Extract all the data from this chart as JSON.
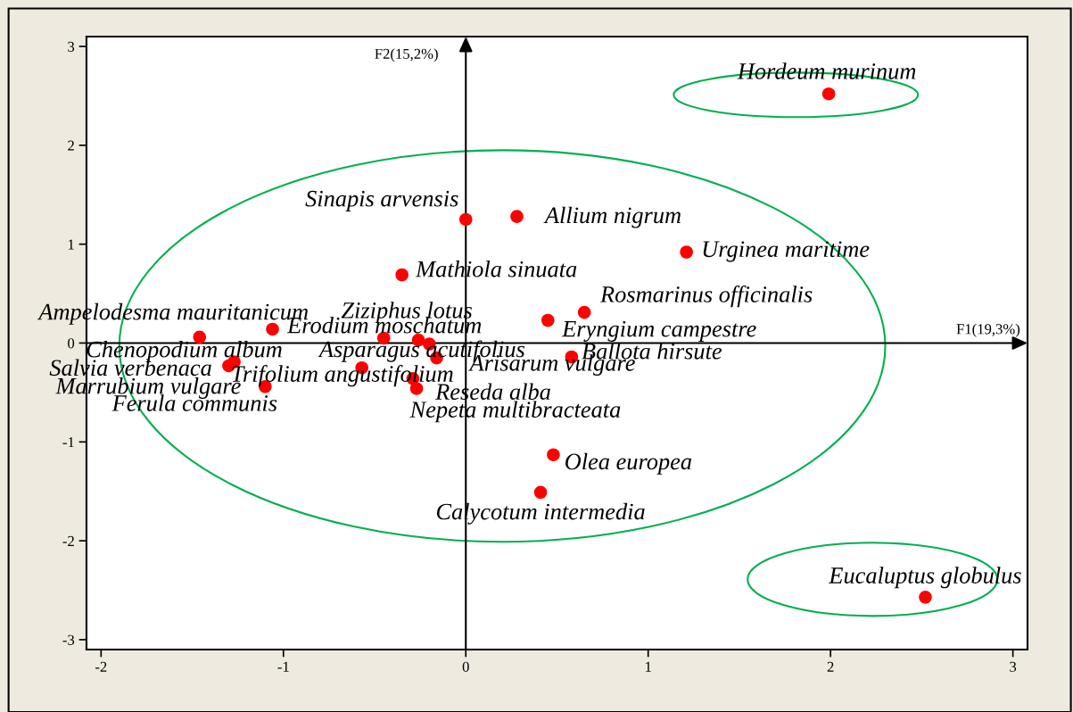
{
  "chart_data": {
    "type": "scatter",
    "xlabel": "F1(19,3%)",
    "ylabel": "F2(15,2%)",
    "xlim": [
      -2.08,
      3.08
    ],
    "ylim": [
      -3.1,
      3.1
    ],
    "xticks": [
      -2,
      -1,
      0,
      1,
      2,
      3
    ],
    "yticks": [
      -3,
      -2,
      -1,
      0,
      1,
      2,
      3
    ],
    "grid": false,
    "legend": false,
    "marker": "circle",
    "series": [
      {
        "color": "#ff0000",
        "x": [
          0.0,
          0.28,
          1.21,
          -0.35,
          0.65,
          0.45,
          0.58,
          -1.46,
          -1.06,
          -0.45,
          -0.26,
          -0.2,
          -0.16,
          -0.57,
          -0.29,
          -0.27,
          -1.27,
          -1.3,
          -1.1,
          0.48,
          0.41,
          1.99,
          2.52
        ],
        "values": [
          1.25,
          1.28,
          0.92,
          0.69,
          0.31,
          0.23,
          -0.14,
          0.06,
          0.14,
          0.05,
          0.03,
          -0.01,
          -0.15,
          -0.25,
          -0.36,
          -0.46,
          -0.19,
          -0.23,
          -0.44,
          -1.13,
          -1.51,
          2.52,
          -2.57
        ]
      }
    ],
    "annotations": [
      {
        "text": "Sinapis arvensis",
        "x": 0.0,
        "y": 1.25
      },
      {
        "text": "Allium nigrum",
        "x": 0.28,
        "y": 1.28
      },
      {
        "text": "Urginea maritime",
        "x": 1.21,
        "y": 0.92
      },
      {
        "text": "Mathiola sinuata",
        "x": -0.35,
        "y": 0.69
      },
      {
        "text": "Rosmarinus officinalis",
        "x": 0.65,
        "y": 0.31
      },
      {
        "text": "Eryngium campestre",
        "x": 0.45,
        "y": 0.23
      },
      {
        "text": "Ballota hirsute",
        "x": 0.58,
        "y": -0.14
      },
      {
        "text": "Ampelodesma mauritanicum",
        "x": -1.46,
        "y": 0.06
      },
      {
        "text": "Ziziphus lotus",
        "x": -0.26,
        "y": 0.03
      },
      {
        "text": "Erodium moschatum",
        "x": -0.45,
        "y": 0.05
      },
      {
        "text": "Asparagus acutifolius",
        "x": -0.2,
        "y": -0.01
      },
      {
        "text": "Chenopodium album",
        "x": -1.06,
        "y": 0.14
      },
      {
        "text": "Salvia verbenaca",
        "x": -1.27,
        "y": -0.19
      },
      {
        "text": "Arisarum vulgare",
        "x": -0.16,
        "y": -0.15
      },
      {
        "text": "Trifolium angustifolium",
        "x": -0.57,
        "y": -0.25
      },
      {
        "text": "Marrubium vulgare",
        "x": -1.3,
        "y": -0.23
      },
      {
        "text": "Reseda alba",
        "x": -0.27,
        "y": -0.46
      },
      {
        "text": "Ferula communis",
        "x": -1.1,
        "y": -0.44
      },
      {
        "text": "Nepeta multibracteata",
        "x": -0.29,
        "y": -0.36
      },
      {
        "text": "Olea europea",
        "x": 0.48,
        "y": -1.13
      },
      {
        "text": "Calycotum intermedia",
        "x": 0.41,
        "y": -1.51
      },
      {
        "text": "Hordeum murinum",
        "x": 1.99,
        "y": 2.52
      },
      {
        "text": "Eucaluptus globulus",
        "x": 2.52,
        "y": -2.57
      }
    ]
  }
}
